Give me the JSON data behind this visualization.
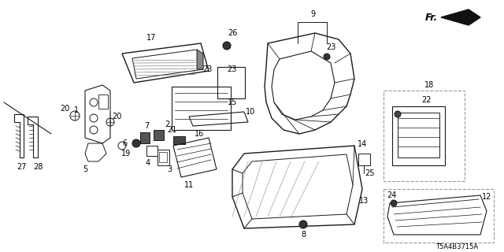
{
  "bg_color": "#ffffff",
  "line_color": "#1a1a1a",
  "diagram_code": "T5A4B3715A",
  "fig_w": 6.4,
  "fig_h": 3.2,
  "dpi": 100
}
